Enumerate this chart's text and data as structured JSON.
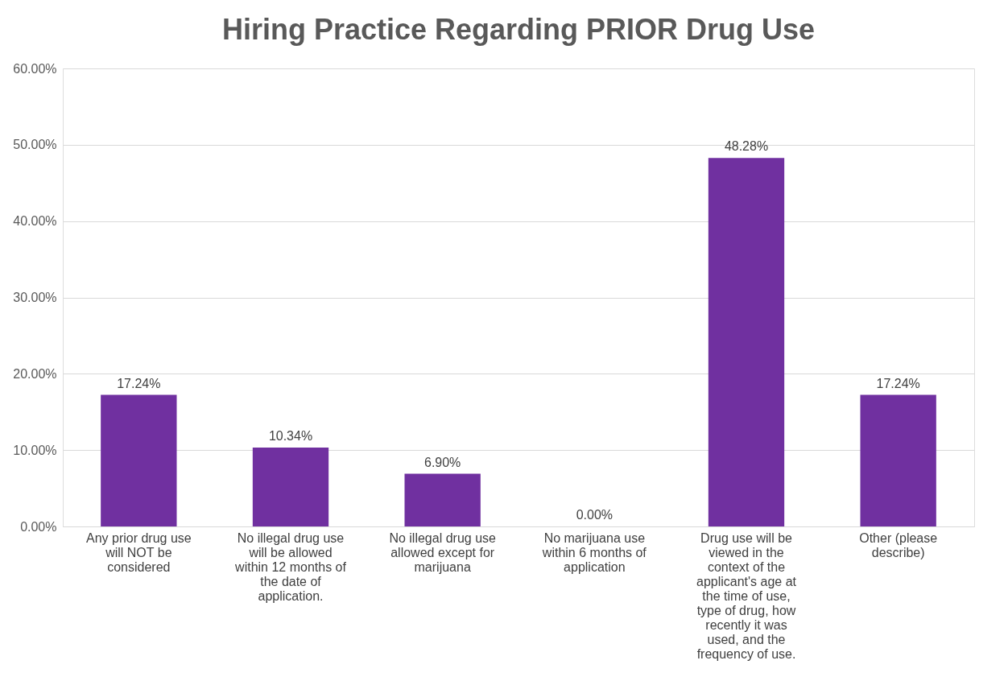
{
  "chart_data": {
    "type": "bar",
    "title": "Hiring Practice Regarding PRIOR Drug Use",
    "categories": [
      "Any prior drug use will NOT be considered",
      "No illegal drug use will be allowed within 12 months of the date of application.",
      "No illegal drug use allowed except for marijuana",
      "No marijuana use within 6 months of application",
      "Drug use will be viewed in the context of the applicant's age at the time of use, type of drug, how recently it was used, and the frequency of use.",
      "Other (please describe)"
    ],
    "values": [
      17.24,
      10.34,
      6.9,
      0.0,
      48.28,
      17.24
    ],
    "value_labels": [
      "17.24%",
      "10.34%",
      "6.90%",
      "0.00%",
      "48.28%",
      "17.24%"
    ],
    "color": "#7030a0",
    "ylim": [
      0,
      60
    ],
    "yticks": [
      {
        "value": 0,
        "label": "0.00%"
      },
      {
        "value": 10,
        "label": "10.00%"
      },
      {
        "value": 20,
        "label": "20.00%"
      },
      {
        "value": 30,
        "label": "30.00%"
      },
      {
        "value": 40,
        "label": "40.00%"
      },
      {
        "value": 50,
        "label": "50.00%"
      },
      {
        "value": 60,
        "label": "60.00%"
      }
    ],
    "grid": "y"
  }
}
